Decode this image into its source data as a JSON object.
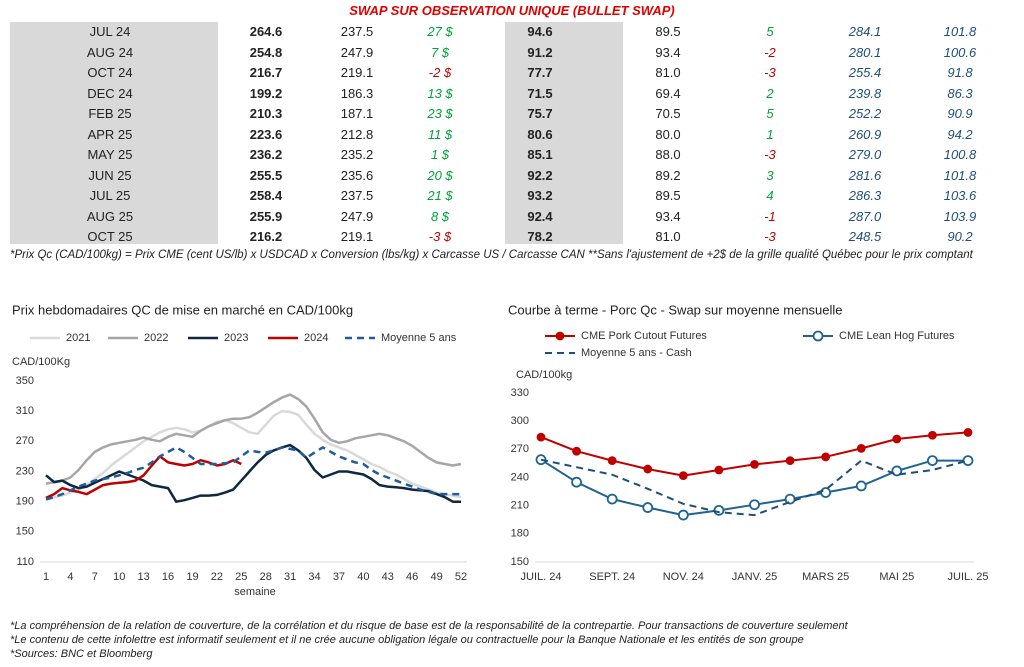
{
  "table": {
    "title": "SWAP SUR OBSERVATION UNIQUE (BULLET SWAP)",
    "rows": [
      [
        "JUL 24",
        "264.6",
        "237.5",
        "27 $",
        "94.6",
        "89.5",
        "5",
        "284.1",
        "101.8"
      ],
      [
        "AUG 24",
        "254.8",
        "247.9",
        "7 $",
        "91.2",
        "93.4",
        "-2",
        "280.1",
        "100.6"
      ],
      [
        "OCT 24",
        "216.7",
        "219.1",
        "-2 $",
        "77.7",
        "81.0",
        "-3",
        "255.4",
        "91.8"
      ],
      [
        "DEC 24",
        "199.2",
        "186.3",
        "13 $",
        "71.5",
        "69.4",
        "2",
        "239.8",
        "86.3"
      ],
      [
        "FEB 25",
        "210.3",
        "187.1",
        "23 $",
        "75.7",
        "70.5",
        "5",
        "252.2",
        "90.9"
      ],
      [
        "APR 25",
        "223.6",
        "212.8",
        "11 $",
        "80.6",
        "80.0",
        "1",
        "260.9",
        "94.2"
      ],
      [
        "MAY 25",
        "236.2",
        "235.2",
        "1 $",
        "85.1",
        "88.0",
        "-3",
        "279.0",
        "100.8"
      ],
      [
        "JUN 25",
        "255.5",
        "235.6",
        "20 $",
        "92.2",
        "89.2",
        "3",
        "281.6",
        "101.8"
      ],
      [
        "JUL 25",
        "258.4",
        "237.5",
        "21 $",
        "93.2",
        "89.5",
        "4",
        "286.3",
        "103.6"
      ],
      [
        "AUG 25",
        "255.9",
        "247.9",
        "8 $",
        "92.4",
        "93.4",
        "-1",
        "287.0",
        "103.9"
      ],
      [
        "OCT 25",
        "216.2",
        "219.1",
        "-3 $",
        "78.2",
        "81.0",
        "-3",
        "248.5",
        "90.2"
      ]
    ]
  },
  "table_note": "*Prix Qc (CAD/100kg) = Prix CME (cent US/lb) x USDCAD x Conversion (lbs/kg) x Carcasse US / Carcasse CAN **Sans l'ajustement de +2$ de la grille qualité Québec pour le prix comptant",
  "chart_data": [
    {
      "type": "line",
      "title": "Prix hebdomadaires QC de mise en marché en CAD/100kg",
      "y_label": "CAD/100Kg",
      "x_label": "semaine",
      "x": [
        1,
        2,
        3,
        4,
        5,
        6,
        7,
        8,
        9,
        10,
        11,
        12,
        13,
        14,
        15,
        16,
        17,
        18,
        19,
        20,
        21,
        22,
        23,
        24,
        25,
        26,
        27,
        28,
        29,
        30,
        31,
        32,
        33,
        34,
        35,
        36,
        37,
        38,
        39,
        40,
        41,
        42,
        43,
        44,
        45,
        46,
        47,
        48,
        49,
        50,
        51,
        52
      ],
      "xlim": [
        1,
        52
      ],
      "xticks": [
        1,
        4,
        7,
        10,
        13,
        16,
        19,
        22,
        25,
        28,
        31,
        34,
        37,
        40,
        43,
        46,
        49,
        52
      ],
      "ylim": [
        110,
        350
      ],
      "yticks": [
        110,
        150,
        190,
        230,
        270,
        310,
        350
      ],
      "series": [
        {
          "name": "2021",
          "color": "#d9d9d9",
          "values": [
            195,
            196,
            198,
            202,
            206,
            212,
            220,
            228,
            238,
            246,
            254,
            262,
            270,
            276,
            282,
            286,
            288,
            286,
            282,
            284,
            290,
            296,
            298,
            294,
            288,
            282,
            280,
            292,
            304,
            310,
            309,
            305,
            292,
            280,
            272,
            266,
            262,
            258,
            252,
            246,
            240,
            236,
            230,
            226,
            220,
            214,
            210,
            206,
            202,
            200,
            198,
            196
          ]
        },
        {
          "name": "2022",
          "color": "#a6a6a6",
          "values": [
            214,
            216,
            218,
            222,
            232,
            245,
            256,
            262,
            266,
            268,
            270,
            272,
            275,
            272,
            270,
            276,
            280,
            278,
            276,
            284,
            290,
            294,
            298,
            300,
            300,
            302,
            308,
            315,
            322,
            328,
            332,
            326,
            316,
            300,
            282,
            272,
            268,
            270,
            274,
            276,
            278,
            280,
            278,
            274,
            270,
            264,
            256,
            248,
            242,
            240,
            238,
            240
          ]
        },
        {
          "name": "2023",
          "color": "#0e2841",
          "values": [
            225,
            216,
            218,
            212,
            208,
            210,
            215,
            220,
            225,
            230,
            226,
            222,
            218,
            212,
            210,
            208,
            190,
            192,
            195,
            198,
            198,
            199,
            202,
            206,
            218,
            230,
            242,
            252,
            258,
            262,
            265,
            258,
            248,
            232,
            222,
            226,
            230,
            230,
            228,
            226,
            220,
            212,
            210,
            209,
            208,
            206,
            205,
            204,
            200,
            196,
            190,
            190
          ]
        },
        {
          "name": "2024",
          "color": "#c00000",
          "values": [
            195,
            200,
            208,
            205,
            203,
            200,
            206,
            212,
            214,
            215,
            216,
            218,
            225,
            238,
            250,
            242,
            240,
            238,
            240,
            245,
            242,
            238,
            240,
            245,
            240,
            null,
            null,
            null,
            null,
            null,
            null,
            null,
            null,
            null,
            null,
            null,
            null,
            null,
            null,
            null,
            null,
            null,
            null,
            null,
            null,
            null,
            null,
            null,
            null,
            null,
            null,
            null
          ]
        },
        {
          "name": "Moyenne 5 ans",
          "color": "#1f5c99",
          "style": "dashed",
          "values": [
            193,
            196,
            200,
            205,
            210,
            214,
            218,
            220,
            222,
            225,
            228,
            232,
            235,
            242,
            250,
            256,
            262,
            256,
            248,
            240,
            240,
            240,
            241,
            242,
            250,
            258,
            256,
            255,
            258,
            262,
            260,
            258,
            248,
            255,
            262,
            256,
            250,
            246,
            242,
            240,
            232,
            226,
            222,
            218,
            214,
            210,
            206,
            203,
            200,
            200,
            200,
            200
          ]
        }
      ]
    },
    {
      "type": "line",
      "title": "Courbe à terme - Porc Qc - Swap sur moyenne mensuelle",
      "y_label": "CAD/100kg",
      "categories": [
        "JUIL. 24",
        null,
        "SEPT. 24",
        null,
        "NOV. 24",
        null,
        "JANV. 25",
        null,
        "MARS 25",
        null,
        "MAI 25",
        null,
        "JUIL. 25"
      ],
      "ylim": [
        150,
        330
      ],
      "yticks": [
        150,
        180,
        210,
        240,
        270,
        300,
        330
      ],
      "series": [
        {
          "name": "CME Pork Cutout Futures",
          "color": "#c00000",
          "marker": "filled",
          "values": [
            283,
            268,
            258,
            249,
            242,
            248,
            254,
            258,
            262,
            271,
            281,
            285,
            288
          ]
        },
        {
          "name": "CME Lean Hog Futures",
          "color": "#1f6391",
          "marker": "open",
          "values": [
            259,
            235,
            217,
            208,
            200,
            205,
            211,
            217,
            224,
            231,
            247,
            258,
            258
          ]
        },
        {
          "name": "Moyenne 5 ans - Cash",
          "color": "#1f4e79",
          "style": "dashed",
          "values": [
            259,
            251,
            243,
            228,
            212,
            203,
            200,
            214,
            227,
            258,
            243,
            248,
            258
          ]
        }
      ]
    }
  ],
  "footnotes": [
    "*La compréhension de la relation de couverture, de la corrélation et du risque de base est de la responsabilité de la contrepartie. Pour transactions de couverture seulement",
    "*Le contenu de cette infolettre est informatif seulement et il ne crée aucune obligation légale ou contractuelle pour la Banque Nationale et les entités de son groupe",
    "*Sources: BNC et Bloomberg"
  ]
}
